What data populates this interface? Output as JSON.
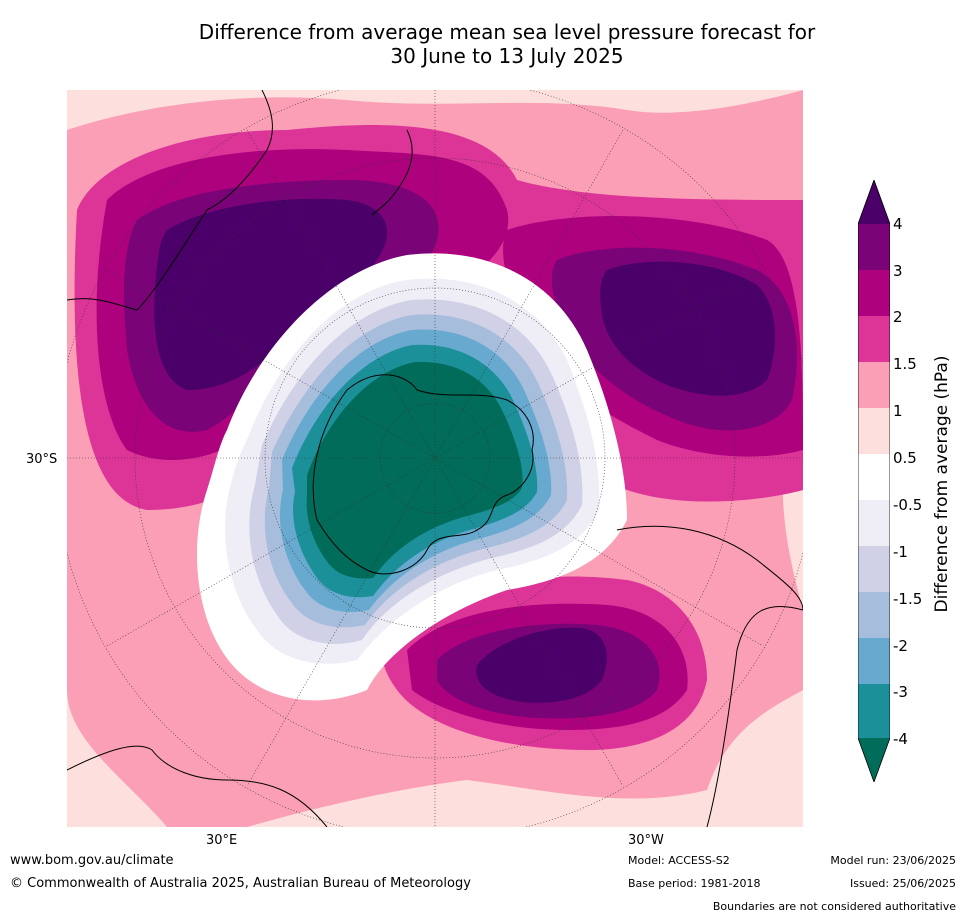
{
  "title": {
    "line1": "Difference from average mean sea level pressure forecast for",
    "line2": "30 June to 13 July 2025"
  },
  "map": {
    "projection": "south-polar-stereographic",
    "lat_label": "30°S",
    "lon_labels": [
      "30°E",
      "30°W"
    ],
    "anomaly_regions": [
      {
        "name": "south-pacific-high",
        "level": "4",
        "color": "#4a0068"
      },
      {
        "name": "south-atlantic-high",
        "level": "4",
        "color": "#4a0068"
      },
      {
        "name": "indian-ocean-high",
        "level": "4",
        "color": "#4a0068"
      },
      {
        "name": "antarctic-low",
        "level": "-4",
        "color": "#006b5a"
      }
    ]
  },
  "legend": {
    "title": "Difference from average (hPa)",
    "ticks": [
      "4",
      "3",
      "2",
      "1.5",
      "1",
      "0.5",
      "-0.5",
      "-1",
      "-1.5",
      "-2",
      "-3",
      "-4"
    ],
    "colors": {
      "above_4": "#4a0068",
      "3_to_4": "#7a0477",
      "2_to_3": "#ae017e",
      "1.5_to_2": "#dd3497",
      "1_to_1.5": "#fa9fb5",
      "0.5_to_1": "#fde0dd",
      "neutral": "#ffffff",
      "-1_to_-0.5": "#efedf5",
      "-1.5_to_-1": "#d0d1e6",
      "-2_to_-1.5": "#a6bddb",
      "-3_to_-2": "#67a9cf",
      "-4_to_-3": "#1c9099",
      "below_-4": "#016c59"
    }
  },
  "footer": {
    "website": "www.bom.gov.au/climate",
    "copyright": "© Commonwealth of Australia 2025, Australian Bureau of Meteorology",
    "model": "Model: ACCESS-S2",
    "base_period": "Base period: 1981-2018",
    "model_run": "Model run: 23/06/2025",
    "issued": "Issued: 25/06/2025",
    "disclaimer": "Boundaries are not considered authoritative"
  }
}
